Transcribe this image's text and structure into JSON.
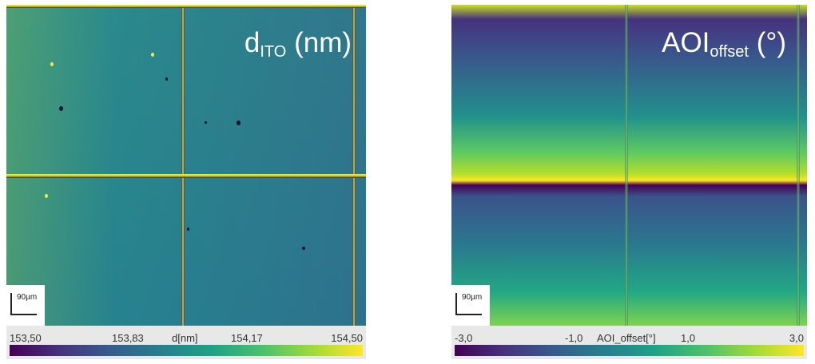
{
  "left_panel": {
    "title_main": "d",
    "title_sub": "ITO",
    "title_unit": " (nm)",
    "scale_label": "90µm",
    "colorbar": {
      "ticks": [
        "153,50",
        "153,83",
        "d[nm]",
        "154,17",
        "154,50"
      ],
      "colormap": [
        "#440154",
        "#3b528b",
        "#21918c",
        "#5ec962",
        "#fde725"
      ]
    }
  },
  "right_panel": {
    "title_main": "AOI",
    "title_sub": "offset",
    "title_unit": " (°)",
    "scale_label": "90µm",
    "colorbar": {
      "ticks": [
        "-3,0",
        "-1,0",
        "AOI_offset[°]",
        "1,0",
        "3,0"
      ],
      "colormap": [
        "#440154",
        "#3b528b",
        "#21918c",
        "#5ec962",
        "#fde725"
      ]
    }
  }
}
